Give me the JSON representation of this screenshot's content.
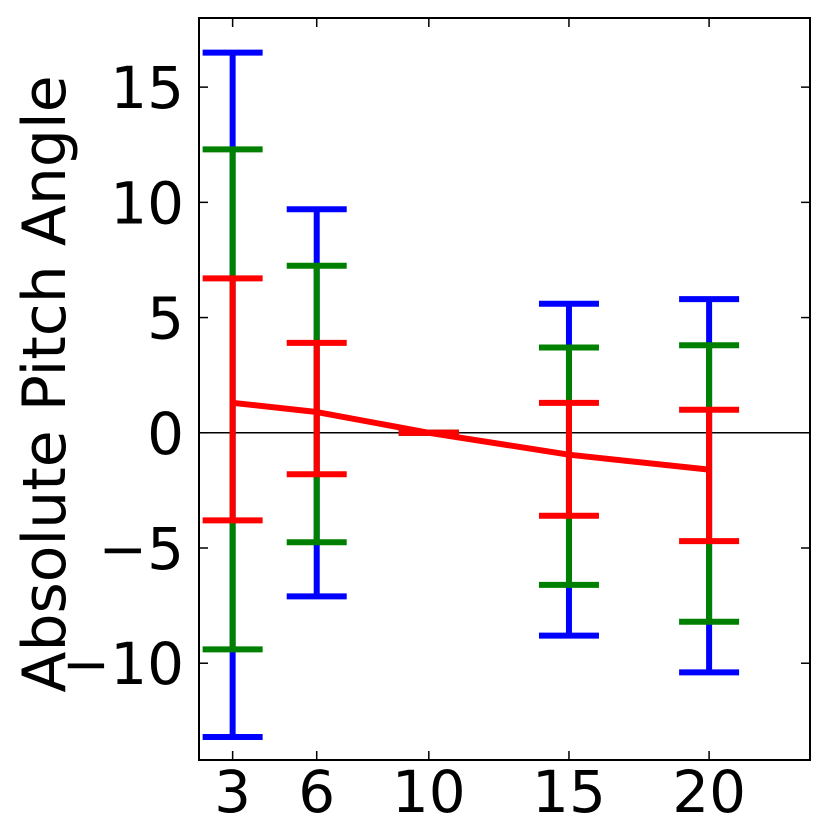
{
  "chart_data": {
    "type": "line",
    "title": "",
    "xlabel": "",
    "ylabel": "Absolute Pitch Angle",
    "xlim": [
      1.8,
      23.6
    ],
    "ylim": [
      -14.2,
      18.0
    ],
    "x_ticks": [
      3,
      6,
      10,
      15,
      20
    ],
    "x_tick_labels": [
      "3",
      "6",
      "10",
      "15",
      "20"
    ],
    "y_ticks": [
      15,
      10,
      5,
      0,
      -5,
      -10
    ],
    "y_tick_labels": [
      "15",
      "10",
      "5",
      "0",
      "−5",
      "−10"
    ],
    "zero_line": true,
    "grid": false,
    "legend": "none",
    "x": [
      3,
      6,
      10,
      15,
      20
    ],
    "mean": {
      "values": [
        1.3,
        0.9,
        0.0,
        -0.95,
        -1.6
      ],
      "color": "#ff0000"
    },
    "error_bars": [
      {
        "color": "#0000ff",
        "lower": [
          -13.2,
          -7.1,
          0.0,
          -8.8,
          -10.4
        ],
        "upper": [
          16.5,
          9.7,
          0.0,
          5.6,
          5.8
        ]
      },
      {
        "color": "#008000",
        "lower": [
          -9.4,
          -4.75,
          0.0,
          -6.6,
          -8.2
        ],
        "upper": [
          12.3,
          7.25,
          0.0,
          3.7,
          3.8
        ]
      },
      {
        "color": "#ff0000",
        "lower": [
          -3.8,
          -1.8,
          0.0,
          -3.6,
          -4.7
        ],
        "upper": [
          6.7,
          3.9,
          0.0,
          1.3,
          1.0
        ]
      }
    ]
  }
}
